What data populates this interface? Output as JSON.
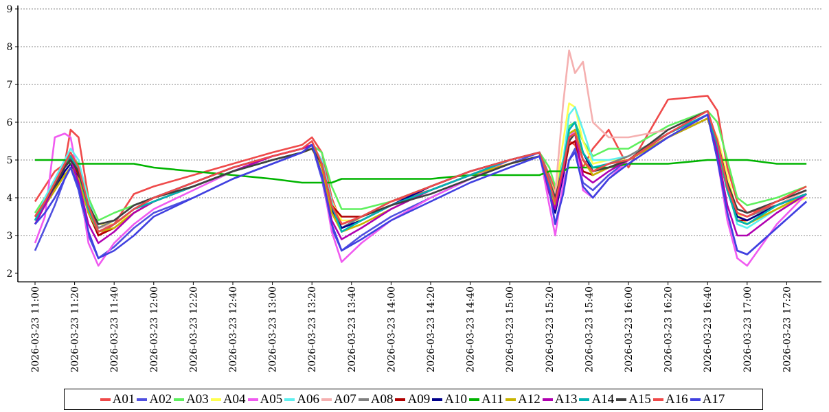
{
  "chart_data": {
    "type": "line",
    "title": "",
    "xlabel": "",
    "ylabel": "",
    "ylim": [
      2,
      9
    ],
    "yticks": [
      "2",
      "3",
      "4",
      "5",
      "6",
      "7",
      "8",
      "9"
    ],
    "grid": true,
    "legend_position": "bottom",
    "xtick_labels": [
      "2026-03-23  11:00",
      "2026-03-23  11:20",
      "2026-03-23  11:40",
      "2026-03-23  12:00",
      "2026-03-23  12:20",
      "2026-03-23  12:40",
      "2026-03-23  13:00",
      "2026-03-23  13:20",
      "2026-03-23  13:40",
      "2026-03-23  14:00",
      "2026-03-23  14:20",
      "2026-03-23  14:40",
      "2026-03-23  15:00",
      "2026-03-23  15:20",
      "2026-03-23  15:40",
      "2026-03-23  16:00",
      "2026-03-23  16:20",
      "2026-03-23  16:40",
      "2026-03-23  17:00",
      "2026-03-23  17:20"
    ],
    "x": [
      "11:00",
      "11:05",
      "11:10",
      "11:15",
      "11:18",
      "11:22",
      "11:27",
      "11:32",
      "11:40",
      "11:50",
      "12:00",
      "12:20",
      "12:40",
      "13:00",
      "13:15",
      "13:20",
      "13:25",
      "13:30",
      "13:35",
      "13:45",
      "14:00",
      "14:20",
      "14:40",
      "15:00",
      "15:15",
      "15:20",
      "15:23",
      "15:27",
      "15:30",
      "15:33",
      "15:37",
      "15:42",
      "15:50",
      "16:00",
      "16:20",
      "16:40",
      "16:45",
      "16:50",
      "16:55",
      "17:00",
      "17:15",
      "17:30"
    ],
    "series": [
      {
        "name": "A01",
        "color": "#ef4a4a",
        "values": [
          3.9,
          4.3,
          4.7,
          4.9,
          5.8,
          5.6,
          4.0,
          3.0,
          3.3,
          4.1,
          4.3,
          4.6,
          4.9,
          5.2,
          5.4,
          5.6,
          5.2,
          4.0,
          3.3,
          3.5,
          3.9,
          4.2,
          4.6,
          5.0,
          5.2,
          4.6,
          4.2,
          4.9,
          5.5,
          5.4,
          4.8,
          5.3,
          5.8,
          4.8,
          6.6,
          6.7,
          6.3,
          4.8,
          3.9,
          3.6,
          3.8,
          4.1
        ]
      },
      {
        "name": "A02",
        "color": "#5050e0",
        "values": [
          2.6,
          3.2,
          3.8,
          4.5,
          4.8,
          4.2,
          3.0,
          2.4,
          2.7,
          3.2,
          3.6,
          4.0,
          4.5,
          4.9,
          5.2,
          5.4,
          4.5,
          3.2,
          2.6,
          3.0,
          3.5,
          4.0,
          4.5,
          4.9,
          5.2,
          4.2,
          3.3,
          4.2,
          5.0,
          5.3,
          4.4,
          4.2,
          4.6,
          5.0,
          5.6,
          6.2,
          5.0,
          3.6,
          2.6,
          2.5,
          3.2,
          3.9
        ]
      },
      {
        "name": "A03",
        "color": "#5ef05e",
        "values": [
          3.6,
          4.0,
          4.4,
          4.9,
          5.1,
          4.9,
          4.0,
          3.4,
          3.6,
          3.8,
          4.0,
          4.3,
          4.7,
          5.0,
          5.2,
          5.4,
          5.2,
          4.3,
          3.7,
          3.7,
          3.9,
          4.3,
          4.7,
          5.0,
          5.2,
          4.8,
          4.3,
          5.0,
          5.9,
          6.0,
          5.5,
          5.1,
          5.3,
          5.3,
          5.9,
          6.3,
          6.0,
          5.0,
          4.0,
          3.8,
          4.0,
          4.3
        ]
      },
      {
        "name": "A04",
        "color": "#ffff50",
        "values": [
          3.5,
          3.8,
          4.2,
          4.6,
          4.8,
          4.6,
          3.8,
          3.3,
          3.3,
          3.6,
          3.9,
          4.3,
          4.7,
          5.0,
          5.2,
          5.3,
          4.9,
          3.9,
          3.4,
          3.4,
          3.8,
          4.2,
          4.6,
          4.9,
          5.1,
          4.5,
          4.1,
          5.5,
          6.5,
          6.4,
          5.5,
          4.9,
          5.0,
          5.0,
          5.6,
          6.1,
          5.6,
          4.6,
          3.6,
          3.3,
          3.7,
          4.0
        ]
      },
      {
        "name": "A05",
        "color": "#f05af0",
        "values": [
          2.8,
          3.5,
          5.6,
          5.7,
          5.6,
          4.5,
          2.8,
          2.2,
          2.8,
          3.3,
          3.7,
          4.2,
          4.7,
          5.1,
          5.3,
          5.4,
          4.6,
          3.1,
          2.3,
          2.8,
          3.4,
          4.0,
          4.5,
          5.0,
          5.2,
          3.8,
          3.0,
          4.4,
          5.6,
          5.8,
          4.2,
          4.0,
          4.5,
          5.0,
          5.7,
          6.2,
          5.0,
          3.4,
          2.4,
          2.2,
          3.3,
          4.1
        ]
      },
      {
        "name": "A06",
        "color": "#5ef0f0",
        "values": [
          3.4,
          4.0,
          4.5,
          5.0,
          5.3,
          5.0,
          3.9,
          3.2,
          3.3,
          3.7,
          3.9,
          4.3,
          4.7,
          5.0,
          5.2,
          5.4,
          5.0,
          3.9,
          3.1,
          3.4,
          3.8,
          4.2,
          4.6,
          5.0,
          5.2,
          4.4,
          3.8,
          5.0,
          6.2,
          6.4,
          5.8,
          5.0,
          5.0,
          5.1,
          5.7,
          6.2,
          5.5,
          4.3,
          3.3,
          3.2,
          3.7,
          4.1
        ]
      },
      {
        "name": "A07",
        "color": "#f5b0b0",
        "values": [
          3.5,
          3.9,
          4.3,
          4.7,
          4.9,
          4.6,
          3.7,
          3.2,
          3.3,
          3.7,
          4.0,
          4.4,
          4.8,
          5.1,
          5.3,
          5.4,
          4.8,
          3.7,
          3.2,
          3.4,
          3.8,
          4.3,
          4.7,
          5.0,
          5.2,
          4.3,
          4.1,
          6.5,
          7.9,
          7.3,
          7.6,
          6.0,
          5.6,
          5.6,
          5.8,
          6.3,
          5.5,
          4.2,
          3.5,
          3.4,
          3.8,
          4.2
        ]
      },
      {
        "name": "A08",
        "color": "#808080",
        "values": [
          3.5,
          3.9,
          4.3,
          4.8,
          5.0,
          4.6,
          3.7,
          3.2,
          3.4,
          3.8,
          4.0,
          4.4,
          4.8,
          5.1,
          5.3,
          5.4,
          4.8,
          3.7,
          3.2,
          3.5,
          3.9,
          4.3,
          4.7,
          5.0,
          5.2,
          4.5,
          4.0,
          4.8,
          5.6,
          5.7,
          5.0,
          4.7,
          4.9,
          5.1,
          5.7,
          6.2,
          5.4,
          4.3,
          3.6,
          3.5,
          3.8,
          4.1
        ]
      },
      {
        "name": "A09",
        "color": "#b00000",
        "values": [
          3.4,
          3.9,
          4.3,
          4.8,
          5.1,
          4.6,
          3.6,
          3.0,
          3.2,
          3.6,
          3.9,
          4.3,
          4.7,
          5.0,
          5.2,
          5.4,
          4.9,
          3.8,
          3.5,
          3.5,
          3.8,
          4.2,
          4.6,
          5.0,
          5.2,
          4.2,
          3.8,
          4.6,
          5.4,
          5.5,
          4.7,
          4.6,
          4.8,
          5.0,
          5.6,
          6.1,
          5.3,
          4.2,
          3.4,
          3.4,
          3.8,
          4.1
        ]
      },
      {
        "name": "A10",
        "color": "#00008b",
        "values": [
          3.4,
          3.8,
          4.2,
          4.7,
          4.9,
          4.5,
          3.6,
          3.1,
          3.3,
          3.7,
          4.0,
          4.4,
          4.8,
          5.1,
          5.3,
          5.4,
          4.8,
          3.7,
          3.2,
          3.4,
          3.8,
          4.3,
          4.7,
          5.0,
          5.2,
          4.3,
          3.6,
          4.6,
          5.8,
          6.0,
          5.2,
          4.7,
          4.9,
          5.0,
          5.6,
          6.1,
          5.3,
          4.2,
          3.5,
          3.4,
          3.8,
          4.1
        ]
      },
      {
        "name": "A11",
        "color": "#00b400",
        "values": [
          5.0,
          5.0,
          5.0,
          5.0,
          4.9,
          4.9,
          4.9,
          4.9,
          4.9,
          4.9,
          4.8,
          4.7,
          4.6,
          4.5,
          4.4,
          4.4,
          4.4,
          4.4,
          4.5,
          4.5,
          4.5,
          4.5,
          4.6,
          4.6,
          4.6,
          4.7,
          4.7,
          4.7,
          4.8,
          4.8,
          4.8,
          4.8,
          4.8,
          4.9,
          4.9,
          5.0,
          5.0,
          5.0,
          5.0,
          5.0,
          4.9,
          4.9
        ]
      },
      {
        "name": "A12",
        "color": "#c8b400",
        "values": [
          3.5,
          3.8,
          4.2,
          4.6,
          4.8,
          4.5,
          3.6,
          3.1,
          3.2,
          3.6,
          3.9,
          4.3,
          4.7,
          5.0,
          5.2,
          5.3,
          4.8,
          3.6,
          3.1,
          3.3,
          3.7,
          4.2,
          4.6,
          4.9,
          5.1,
          4.3,
          3.8,
          4.8,
          5.7,
          5.8,
          5.0,
          4.6,
          4.8,
          5.0,
          5.6,
          6.1,
          5.3,
          4.2,
          3.4,
          3.3,
          3.7,
          4.1
        ]
      },
      {
        "name": "A13",
        "color": "#b000b0",
        "values": [
          3.3,
          3.8,
          4.3,
          4.8,
          5.0,
          4.4,
          3.3,
          2.8,
          3.1,
          3.6,
          3.9,
          4.3,
          4.7,
          5.1,
          5.3,
          5.4,
          4.6,
          3.4,
          2.9,
          3.2,
          3.7,
          4.2,
          4.6,
          5.0,
          5.2,
          4.1,
          3.7,
          4.7,
          5.6,
          5.7,
          4.6,
          4.4,
          4.7,
          5.0,
          5.7,
          6.2,
          5.2,
          3.8,
          3.0,
          3.0,
          3.6,
          4.1
        ]
      },
      {
        "name": "A14",
        "color": "#00b4b4",
        "values": [
          3.4,
          3.9,
          4.4,
          4.9,
          5.1,
          4.7,
          3.7,
          3.1,
          3.3,
          3.7,
          3.9,
          4.3,
          4.7,
          5.0,
          5.2,
          5.4,
          4.9,
          3.8,
          3.1,
          3.4,
          3.8,
          4.2,
          4.6,
          5.0,
          5.2,
          4.3,
          3.9,
          4.9,
          5.8,
          6.0,
          5.2,
          4.8,
          4.9,
          5.0,
          5.7,
          6.2,
          5.4,
          4.2,
          3.4,
          3.3,
          3.8,
          4.1
        ]
      },
      {
        "name": "A15",
        "color": "#404040",
        "values": [
          3.5,
          3.9,
          4.3,
          4.8,
          5.0,
          4.7,
          3.8,
          3.3,
          3.4,
          3.8,
          4.0,
          4.3,
          4.7,
          5.0,
          5.2,
          5.3,
          4.9,
          3.8,
          3.3,
          3.5,
          3.8,
          4.1,
          4.5,
          4.9,
          5.1,
          4.4,
          4.0,
          4.8,
          5.5,
          5.7,
          5.0,
          4.7,
          4.8,
          5.0,
          5.8,
          6.3,
          5.5,
          4.4,
          3.7,
          3.6,
          3.9,
          4.2
        ]
      },
      {
        "name": "A16",
        "color": "#ef4a4a",
        "values": [
          3.5,
          3.9,
          4.4,
          4.9,
          5.2,
          4.8,
          3.8,
          3.1,
          3.3,
          3.7,
          4.0,
          4.4,
          4.8,
          5.1,
          5.3,
          5.5,
          4.9,
          3.8,
          3.3,
          3.5,
          3.9,
          4.3,
          4.7,
          5.0,
          5.2,
          4.4,
          3.9,
          4.8,
          5.6,
          5.7,
          5.0,
          4.7,
          4.9,
          5.0,
          5.7,
          6.3,
          5.5,
          4.3,
          3.6,
          3.5,
          3.9,
          4.3
        ]
      },
      {
        "name": "A17",
        "color": "#4040e0",
        "values": [
          3.3,
          3.6,
          4.0,
          4.5,
          4.8,
          4.3,
          3.1,
          2.4,
          2.6,
          3.0,
          3.5,
          4.0,
          4.5,
          4.9,
          5.2,
          5.4,
          4.6,
          3.3,
          2.6,
          2.9,
          3.4,
          3.9,
          4.4,
          4.8,
          5.1,
          4.2,
          3.3,
          4.1,
          5.0,
          5.2,
          4.3,
          4.0,
          4.5,
          4.9,
          5.6,
          6.2,
          5.0,
          3.6,
          2.6,
          2.5,
          3.2,
          3.9
        ]
      }
    ]
  }
}
